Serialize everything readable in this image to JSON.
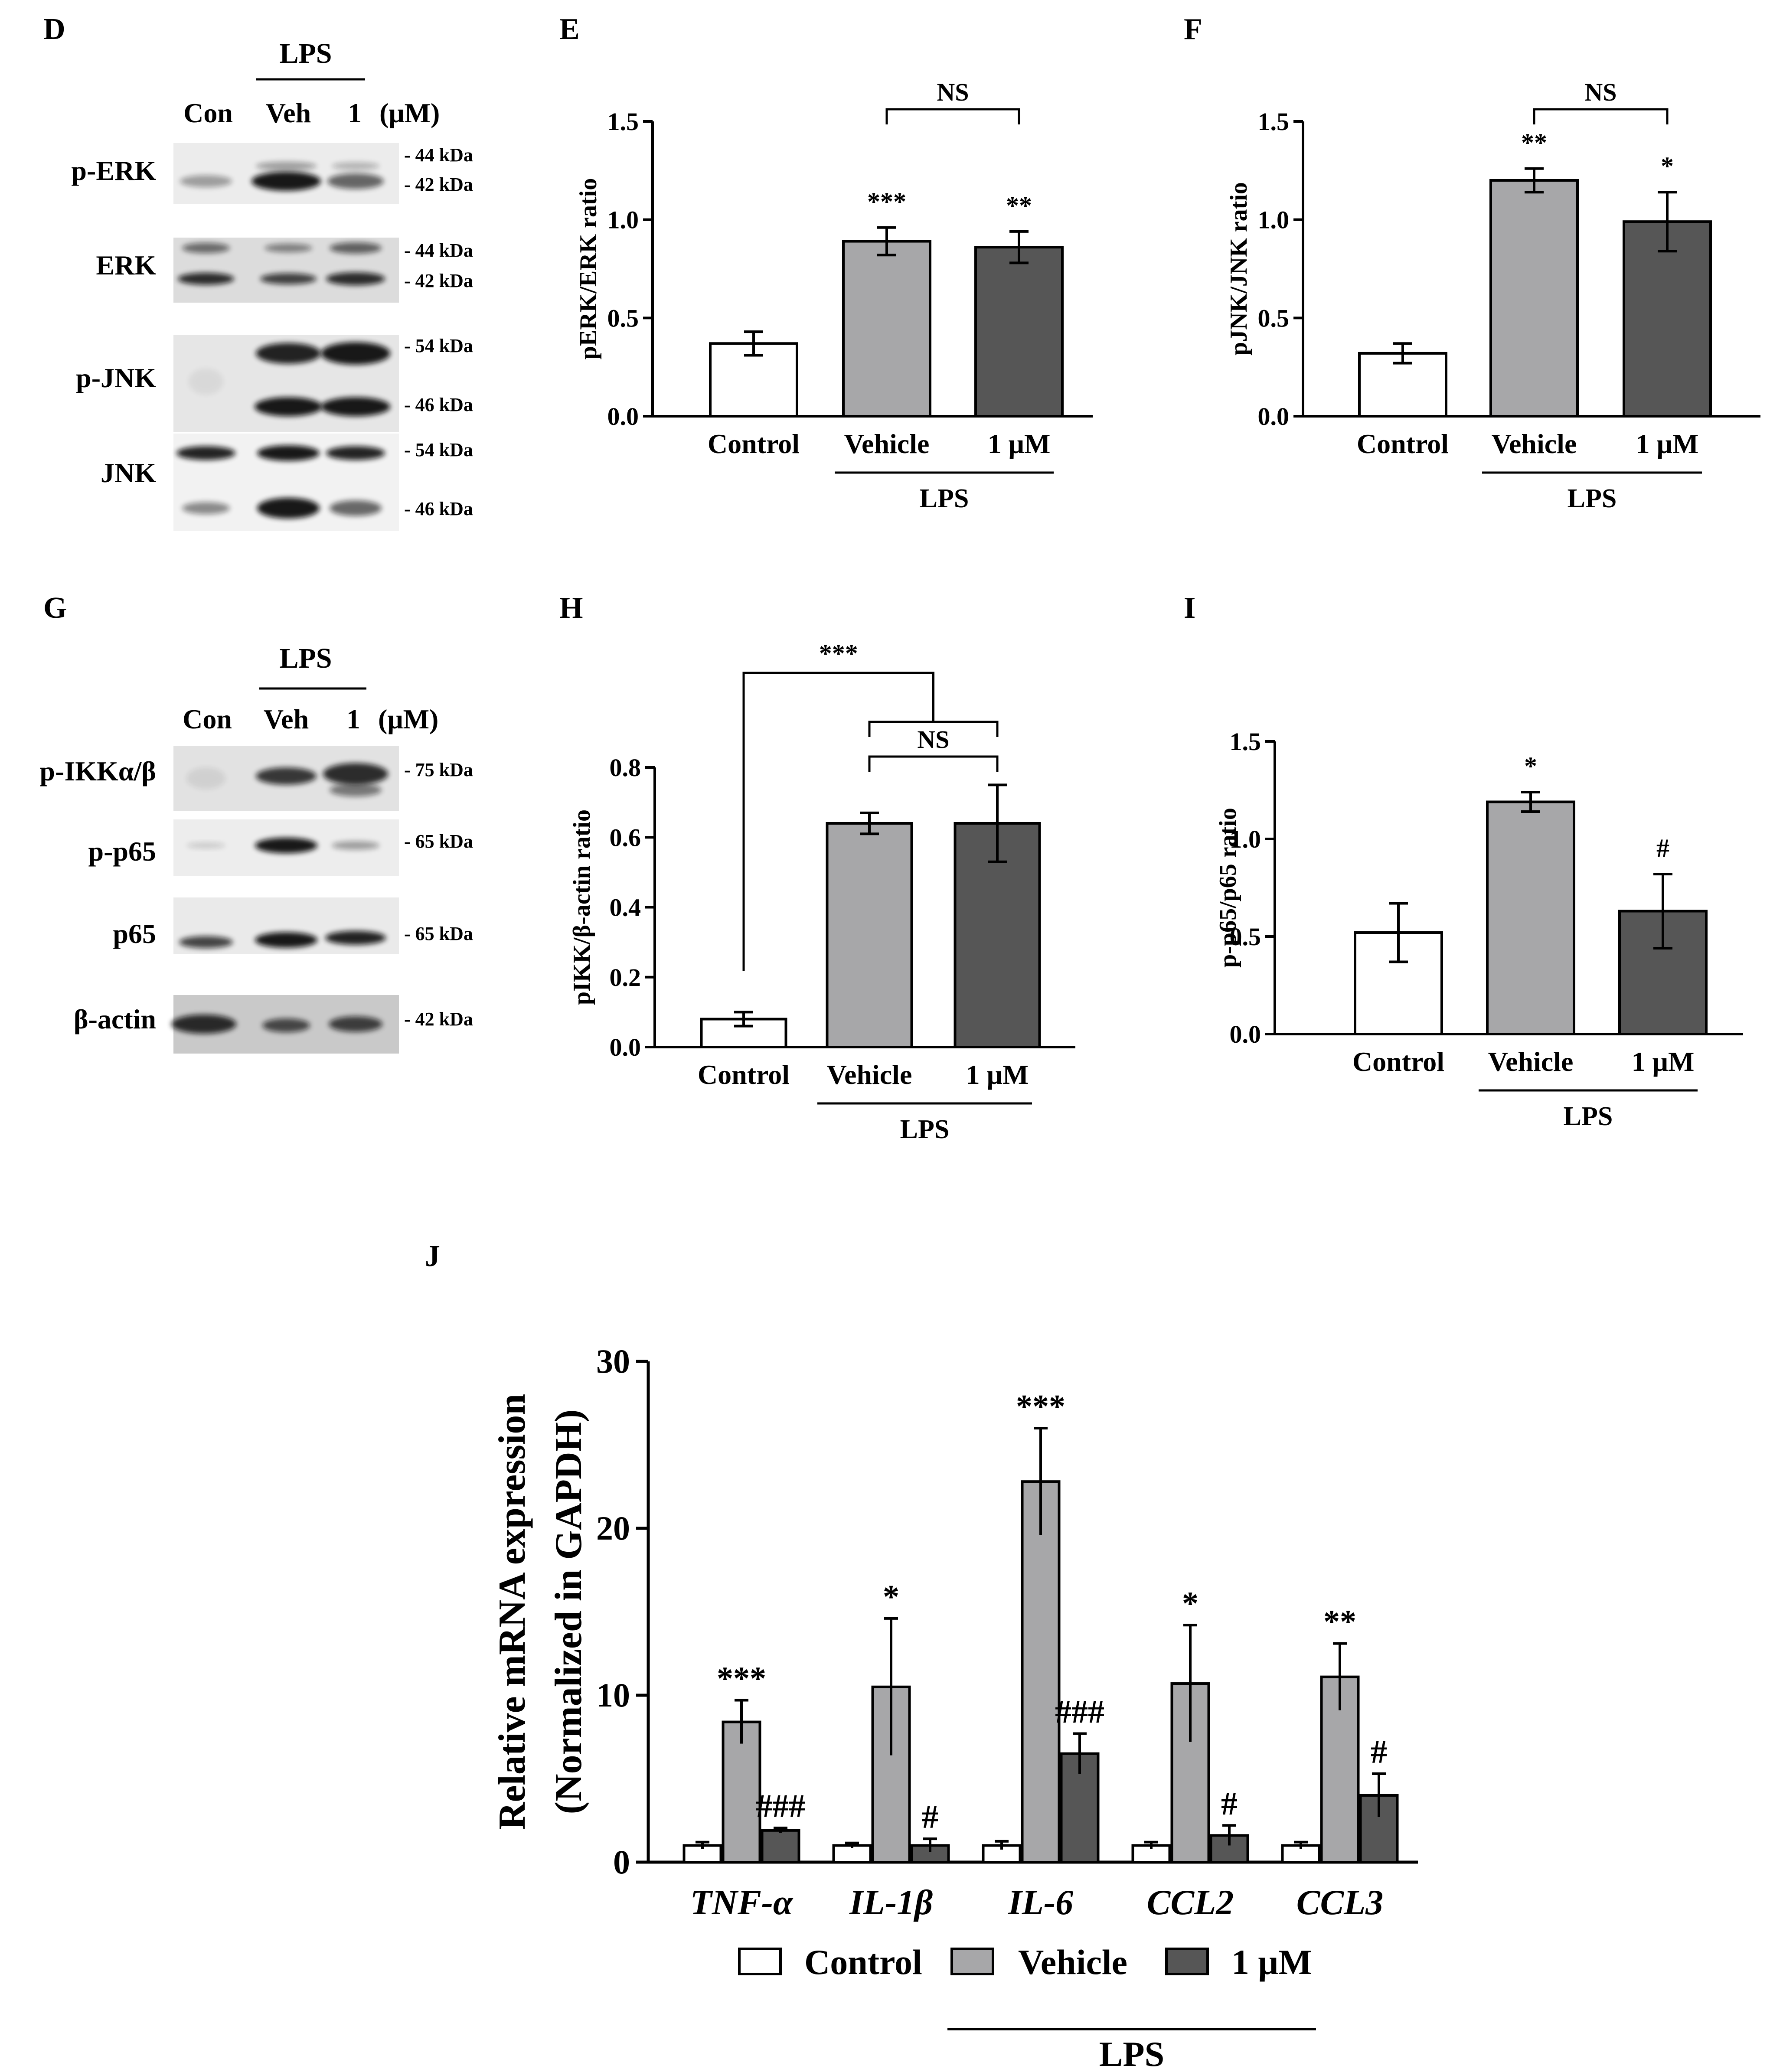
{
  "panel_letters": {
    "D": "D",
    "E": "E",
    "F": "F",
    "G": "G",
    "H": "H",
    "I": "I",
    "J": "J"
  },
  "colors": {
    "control": "#ffffff",
    "vehicle": "#a7a7a9",
    "one_um": "#565656",
    "axis": "#000000"
  },
  "blot_d": {
    "lps": "LPS",
    "lanes": [
      "Con",
      "Veh",
      "1"
    ],
    "unit": "(μM)",
    "rows": [
      {
        "label": "p-ERK",
        "sizes": [
          "- 44 kDa",
          "- 42 kDa"
        ]
      },
      {
        "label": "ERK",
        "sizes": [
          "- 44 kDa",
          "- 42 kDa"
        ]
      },
      {
        "label": "p-JNK",
        "sizes": [
          "- 54 kDa",
          "- 46 kDa"
        ]
      },
      {
        "label": "JNK",
        "sizes": [
          "- 54 kDa",
          "- 46 kDa"
        ]
      }
    ]
  },
  "blot_g": {
    "lps": "LPS",
    "lanes": [
      "Con",
      "Veh",
      "1"
    ],
    "unit": "(μM)",
    "rows": [
      {
        "label": "p-IKKα/β",
        "sizes": [
          "- 75 kDa"
        ]
      },
      {
        "label": "p-p65",
        "sizes": [
          "- 65 kDa"
        ]
      },
      {
        "label": "p65",
        "sizes": [
          "- 65 kDa"
        ]
      },
      {
        "label": "β-actin",
        "sizes": [
          "- 42 kDa"
        ]
      }
    ]
  },
  "chart_data": [
    {
      "panel": "E",
      "type": "bar",
      "ylabel": "pERK/ERK ratio",
      "categories": [
        "Control",
        "Vehicle",
        "1 μM"
      ],
      "group_label": "LPS",
      "values": [
        0.37,
        0.89,
        0.86
      ],
      "errors": [
        0.06,
        0.07,
        0.08
      ],
      "ylim": [
        0,
        1.5
      ],
      "yticks": [
        "0.0",
        "0.5",
        "1.0",
        "1.5"
      ],
      "annotations": [
        "",
        "***",
        "**"
      ],
      "comparison": "NS"
    },
    {
      "panel": "F",
      "type": "bar",
      "ylabel": "pJNK/JNK ratio",
      "categories": [
        "Control",
        "Vehicle",
        "1 μM"
      ],
      "group_label": "LPS",
      "values": [
        0.32,
        1.2,
        0.99
      ],
      "errors": [
        0.05,
        0.06,
        0.15
      ],
      "ylim": [
        0,
        1.5
      ],
      "yticks": [
        "0.0",
        "0.5",
        "1.0",
        "1.5"
      ],
      "annotations": [
        "",
        "**",
        "*"
      ],
      "comparison": "NS"
    },
    {
      "panel": "H",
      "type": "bar",
      "ylabel": "pIKK/β-actin ratio",
      "categories": [
        "Control",
        "Vehicle",
        "1 μM"
      ],
      "group_label": "LPS",
      "values": [
        0.08,
        0.64,
        0.64
      ],
      "errors": [
        0.02,
        0.03,
        0.11
      ],
      "ylim": [
        0,
        0.8
      ],
      "yticks": [
        "0.0",
        "0.2",
        "0.4",
        "0.6",
        "0.8"
      ],
      "annotations": [
        "",
        "",
        ""
      ],
      "comparison": "NS",
      "comparison_top": "***"
    },
    {
      "panel": "I",
      "type": "bar",
      "ylabel": "p-p65/p65 ratio",
      "categories": [
        "Control",
        "Vehicle",
        "1 μM"
      ],
      "group_label": "LPS",
      "values": [
        0.52,
        1.19,
        0.63
      ],
      "errors": [
        0.15,
        0.05,
        0.19
      ],
      "ylim": [
        0,
        1.5
      ],
      "yticks": [
        "0.0",
        "0.5",
        "1.0",
        "1.5"
      ],
      "annotations": [
        "",
        "*",
        "#"
      ]
    },
    {
      "panel": "J",
      "type": "bar",
      "ylabel_lines": [
        "Relative mRNA expression",
        "(Normalized in GAPDH)"
      ],
      "categories": [
        "TNF-α",
        "IL-1β",
        "IL-6",
        "CCL2",
        "CCL3"
      ],
      "ylim": [
        0,
        30
      ],
      "yticks": [
        "0",
        "10",
        "20",
        "30"
      ],
      "series": [
        {
          "name": "Control",
          "values": [
            1.0,
            1.0,
            1.0,
            1.0,
            1.0
          ],
          "errors": [
            0.2,
            0.15,
            0.25,
            0.2,
            0.2
          ],
          "annotations": [
            "",
            "",
            "",
            "",
            ""
          ]
        },
        {
          "name": "Vehicle",
          "values": [
            8.4,
            10.5,
            22.8,
            10.7,
            11.1
          ],
          "errors": [
            1.3,
            4.1,
            3.2,
            3.5,
            2.0
          ],
          "annotations": [
            "***",
            "*",
            "***",
            "*",
            "**"
          ]
        },
        {
          "name": "1 μM",
          "values": [
            1.9,
            1.0,
            6.5,
            1.6,
            4.0
          ],
          "errors": [
            0.15,
            0.4,
            1.2,
            0.6,
            1.3
          ],
          "annotations": [
            "###",
            "#",
            "###",
            "#",
            "#"
          ]
        }
      ],
      "legend_group_label": "LPS",
      "legend_position": "bottom"
    }
  ]
}
